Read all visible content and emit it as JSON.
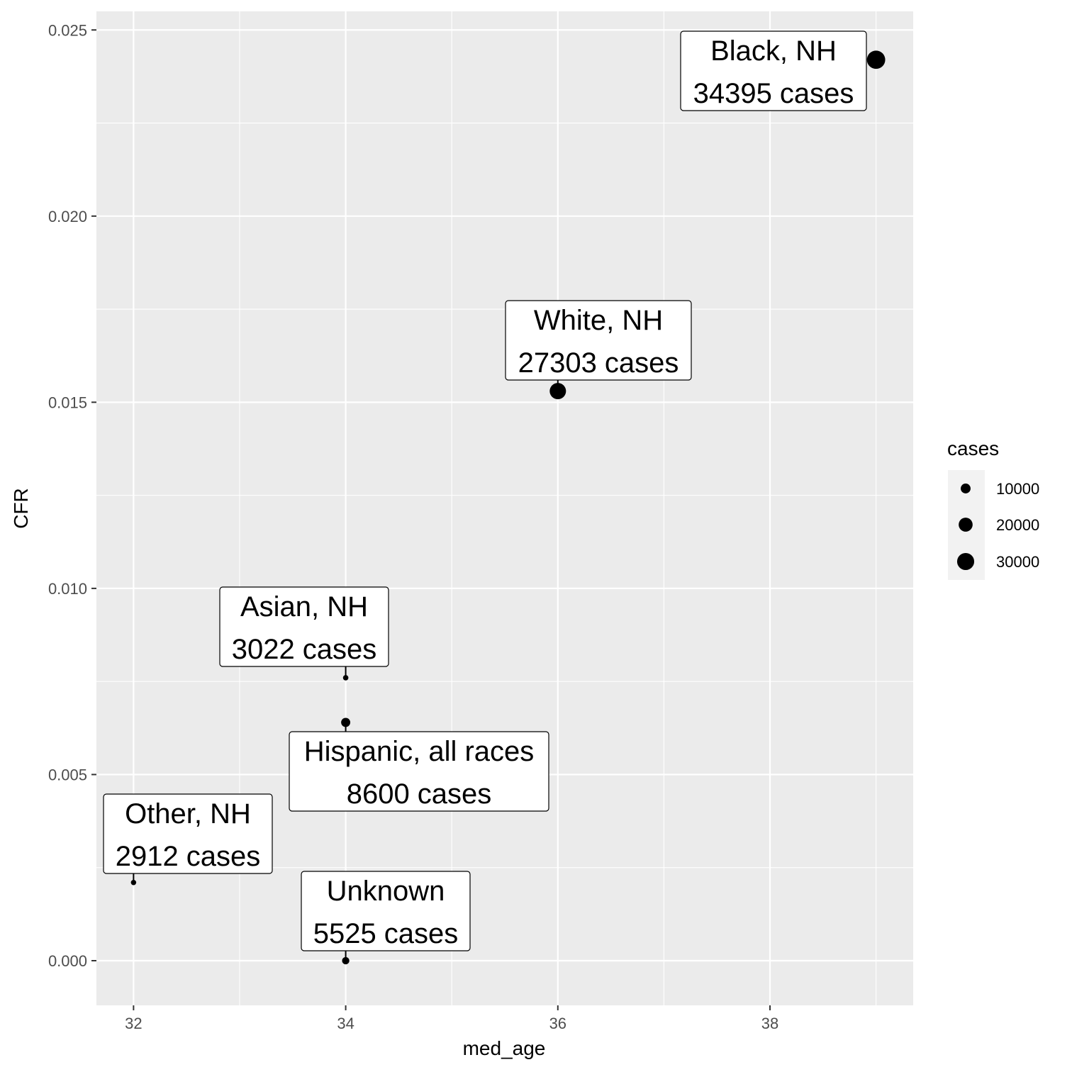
{
  "chart_data": {
    "type": "scatter",
    "title": "",
    "xlabel": "med_age",
    "ylabel": "CFR",
    "xlim": [
      31.65,
      39.35
    ],
    "ylim": [
      -0.0012,
      0.0255
    ],
    "x_ticks": [
      32,
      34,
      36,
      38
    ],
    "x_tick_labels": [
      "32",
      "34",
      "36",
      "38"
    ],
    "y_ticks": [
      0.0,
      0.005,
      0.01,
      0.015,
      0.02,
      0.025
    ],
    "y_tick_labels": [
      "0.000",
      "0.005",
      "0.010",
      "0.015",
      "0.020",
      "0.025"
    ],
    "grid": true,
    "points": [
      {
        "group": "Black, NH",
        "med_age": 39,
        "cfr": 0.0242,
        "cases": 34395,
        "label_line1": "Black, NH",
        "label_line2": "34395 cases"
      },
      {
        "group": "White, NH",
        "med_age": 36,
        "cfr": 0.0153,
        "cases": 27303,
        "label_line1": "White, NH",
        "label_line2": "27303 cases"
      },
      {
        "group": "Asian, NH",
        "med_age": 34,
        "cfr": 0.0076,
        "cases": 3022,
        "label_line1": "Asian, NH",
        "label_line2": "3022 cases"
      },
      {
        "group": "Hispanic, all races",
        "med_age": 34,
        "cfr": 0.0064,
        "cases": 8600,
        "label_line1": "Hispanic, all races",
        "label_line2": "8600 cases"
      },
      {
        "group": "Other, NH",
        "med_age": 32,
        "cfr": 0.0021,
        "cases": 2912,
        "label_line1": "Other, NH",
        "label_line2": "2912 cases"
      },
      {
        "group": "Unknown",
        "med_age": 34,
        "cfr": 0.0,
        "cases": 5525,
        "label_line1": "Unknown",
        "label_line2": "5525 cases"
      }
    ],
    "legend": {
      "title": "cases",
      "position": "right",
      "entries": [
        {
          "label": "10000",
          "value": 10000
        },
        {
          "label": "20000",
          "value": 20000
        },
        {
          "label": "30000",
          "value": 30000
        }
      ]
    },
    "colors": {
      "panel_background": "#ebebeb",
      "grid": "#ffffff",
      "point": "#000000",
      "label_fill": "#ffffff"
    }
  }
}
